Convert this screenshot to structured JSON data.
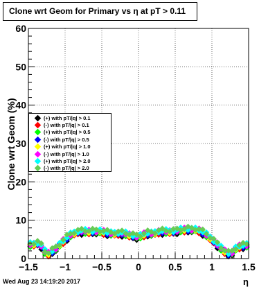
{
  "chart_data": {
    "type": "scatter",
    "title": "Clone wrt Geom for Primary vs   η at pT > 0.11",
    "xlabel": "η",
    "ylabel": "Clone wrt Geom (%)",
    "xlim": [
      -1.5,
      1.5
    ],
    "ylim": [
      0,
      60
    ],
    "x_ticks": [
      "−1.5",
      "−1",
      "−0.5",
      "0",
      "0.5",
      "1",
      "1.5"
    ],
    "y_ticks": [
      "0",
      "10",
      "20",
      "30",
      "40",
      "50",
      "60"
    ],
    "grid": true,
    "legend_position": "left-middle",
    "timestamp": "Wed Aug 23 14:19:20 2017",
    "series": [
      {
        "name": "(+) with pT/|q| > 0.1",
        "color": "#000000"
      },
      {
        "name": "(-) with pT/|q| > 0.1",
        "color": "#ff0000"
      },
      {
        "name": "(+) with pT/|q| > 0.5",
        "color": "#00ff00"
      },
      {
        "name": "(-) with pT/|q| > 0.5",
        "color": "#0000ff"
      },
      {
        "name": "(+) with pT/|q| > 1.0",
        "color": "#ffff00"
      },
      {
        "name": "(-) with pT/|q| > 1.0",
        "color": "#ff00ff"
      },
      {
        "name": "(+) with pT/|q| > 2.0",
        "color": "#00ffff"
      },
      {
        "name": "(-) with pT/|q| > 2.0",
        "color": "#66cc55"
      }
    ],
    "profile": {
      "x": [
        -1.5,
        -1.35,
        -1.25,
        -1.2,
        -1.1,
        -1.0,
        -0.9,
        -0.8,
        -0.7,
        -0.6,
        -0.5,
        -0.4,
        -0.3,
        -0.2,
        -0.1,
        0.0,
        0.1,
        0.2,
        0.3,
        0.4,
        0.5,
        0.6,
        0.7,
        0.8,
        0.9,
        1.0,
        1.1,
        1.2,
        1.25,
        1.35,
        1.5
      ],
      "y": [
        3.5,
        4.0,
        1.0,
        1.5,
        3.0,
        5.0,
        6.5,
        7.0,
        7.0,
        7.0,
        7.0,
        6.5,
        6.5,
        6.5,
        6.0,
        5.5,
        6.5,
        6.5,
        7.0,
        7.0,
        7.0,
        7.5,
        7.5,
        7.5,
        6.5,
        5.0,
        3.0,
        1.5,
        1.0,
        3.0,
        3.5
      ]
    }
  }
}
